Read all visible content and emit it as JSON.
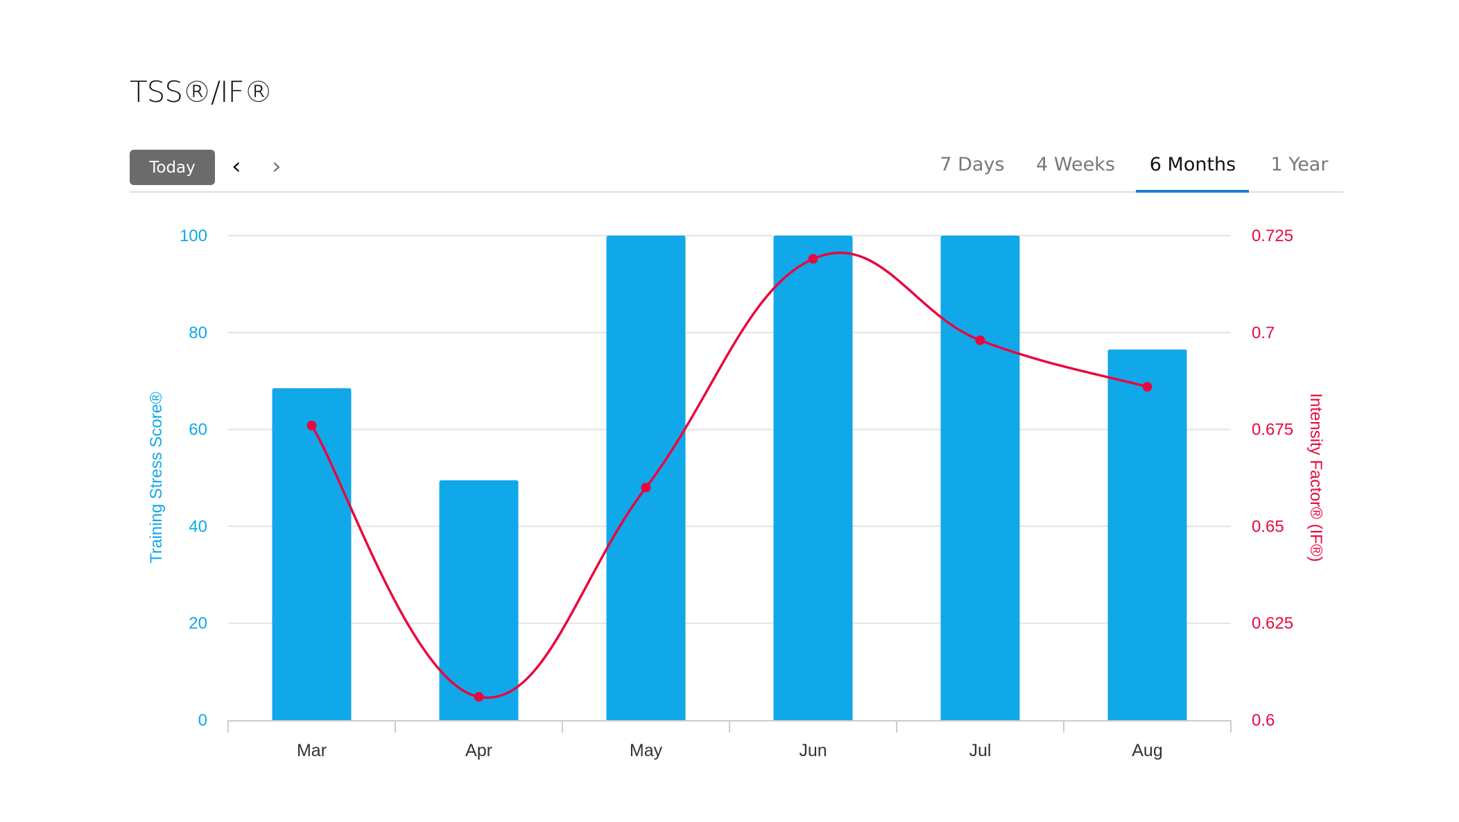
{
  "header": {
    "title": "TSS®/IF®",
    "today_label": "Today",
    "prev_icon": "chevron-left-icon",
    "next_icon": "chevron-right-icon"
  },
  "tabs": [
    {
      "label": "7 Days"
    },
    {
      "label": "4 Weeks"
    },
    {
      "label": "6 Months",
      "active": true
    },
    {
      "label": "1 Year"
    }
  ],
  "chart_data": {
    "type": "bar+line",
    "categories": [
      "Mar",
      "Apr",
      "May",
      "Jun",
      "Jul",
      "Aug"
    ],
    "series": [
      {
        "name": "Training Stress Score®",
        "type": "bar",
        "axis": "left",
        "color": "#11a8ea",
        "values": [
          68.5,
          49.5,
          100,
          100,
          100,
          76.5
        ]
      },
      {
        "name": "Intensity Factor® (IF®)",
        "type": "spline",
        "axis": "right",
        "color": "#e8083e",
        "values": [
          0.676,
          0.606,
          0.66,
          0.719,
          0.698,
          0.686
        ]
      }
    ],
    "y_left": {
      "label": "Training Stress Score®",
      "range": [
        0,
        100
      ],
      "ticks": [
        "0",
        "20",
        "40",
        "60",
        "80",
        "100"
      ],
      "color": "#11a8ea"
    },
    "y_right": {
      "label": "Intensity Factor® (IF®)",
      "range": [
        0.6,
        0.725
      ],
      "ticks": [
        "0.6",
        "0.625",
        "0.65",
        "0.675",
        "0.7",
        "0.725"
      ],
      "color": "#e8083e"
    },
    "grid": true,
    "legend": "none"
  }
}
